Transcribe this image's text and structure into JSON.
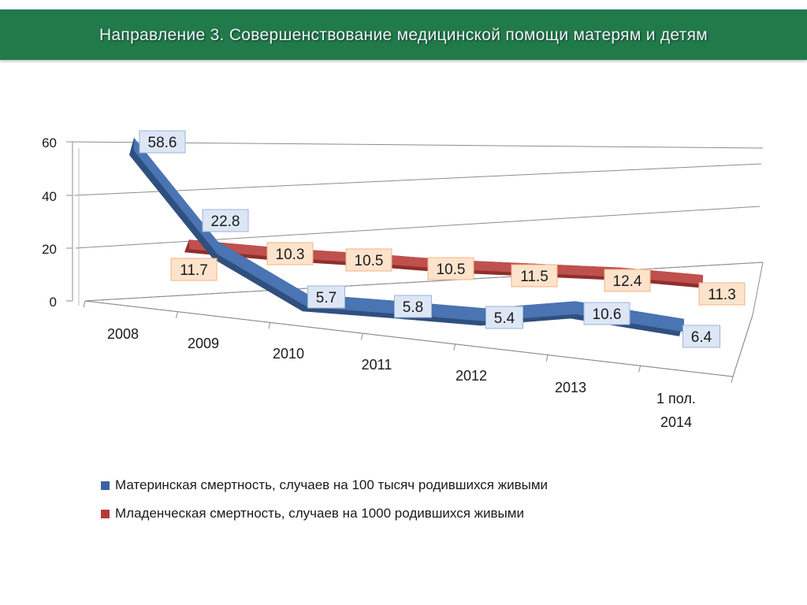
{
  "header": {
    "title": "Направление 3. Совершенствование медицинской помощи матерям и детям"
  },
  "colors": {
    "header_bg": "#217a4a",
    "maternal": "#3a63a0",
    "infant": "#b23b36"
  },
  "chart_data": {
    "type": "line",
    "categories": [
      "2008",
      "2009",
      "2010",
      "2011",
      "2012",
      "2013",
      "1 пол. 2014"
    ],
    "category_lines": [
      [
        "2008"
      ],
      [
        "2009"
      ],
      [
        "2010"
      ],
      [
        "2011"
      ],
      [
        "2012"
      ],
      [
        "2013"
      ],
      [
        "1 пол.",
        "2014"
      ]
    ],
    "series": [
      {
        "name": "Материнская смертность, случаев на 100 тысяч родившихся живыми",
        "values": [
          58.6,
          22.8,
          5.7,
          5.8,
          5.4,
          10.6,
          6.4
        ],
        "color": "#3a63a0"
      },
      {
        "name": "Младенческая смертность, случаев на 1000 родившихся живыми",
        "values": [
          11.7,
          10.3,
          10.5,
          10.5,
          11.5,
          12.4,
          11.3
        ],
        "color": "#b23b36"
      }
    ],
    "yticks": [
      0,
      20,
      40,
      60
    ],
    "ylim": [
      0,
      60
    ],
    "grid": true,
    "legend_position": "bottom",
    "data_labels": true
  }
}
